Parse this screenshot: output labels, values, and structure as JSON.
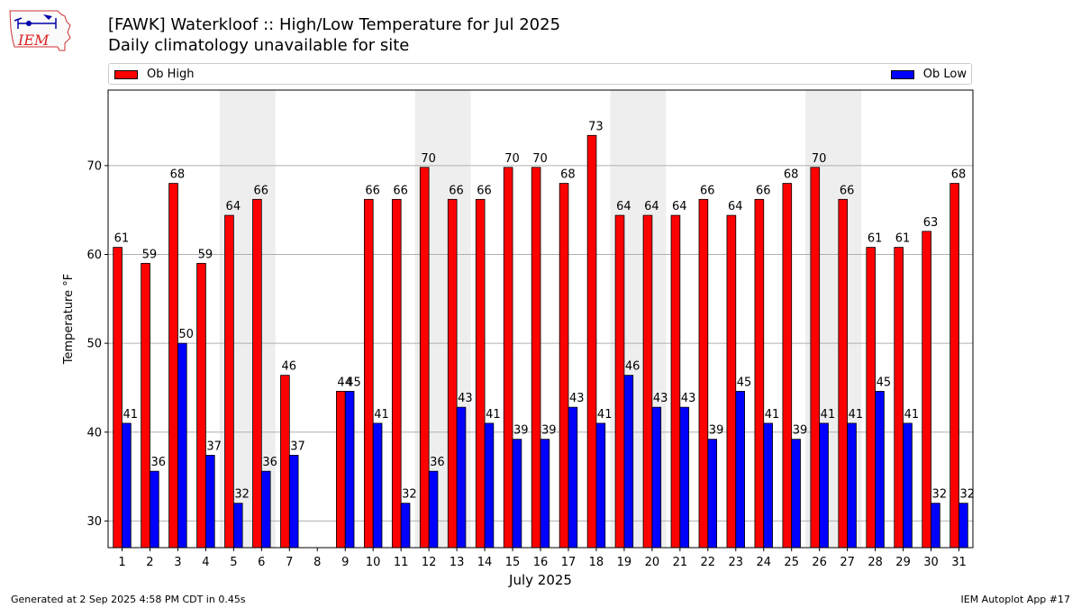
{
  "header": {
    "title": "[FAWK] Waterkloof :: High/Low Temperature for Jul 2025",
    "subtitle": "Daily climatology unavailable for site",
    "logo_text": "IEM"
  },
  "legend": {
    "high_label": "Ob High",
    "low_label": "Ob Low"
  },
  "footer": {
    "generated": "Generated at 2 Sep 2025 4:58 PM CDT in 0.45s",
    "app": "IEM Autoplot App #17"
  },
  "colors": {
    "high": "#ff0000",
    "low": "#0000ff",
    "weekend_shade": "#eeeeee",
    "grid": "#b0b0b0"
  },
  "chart_data": {
    "type": "bar",
    "title": "[FAWK] Waterkloof :: High/Low Temperature for Jul 2025",
    "subtitle": "Daily climatology unavailable for site",
    "xlabel": "July 2025",
    "ylabel": "Temperature °F",
    "categories": [
      "1",
      "2",
      "3",
      "4",
      "5",
      "6",
      "7",
      "8",
      "9",
      "10",
      "11",
      "12",
      "13",
      "14",
      "15",
      "16",
      "17",
      "18",
      "19",
      "20",
      "21",
      "22",
      "23",
      "24",
      "25",
      "26",
      "27",
      "28",
      "29",
      "30",
      "31"
    ],
    "series": [
      {
        "name": "Ob High",
        "color": "#ff0000",
        "values": [
          61,
          59,
          68,
          59,
          64,
          66,
          46,
          null,
          44,
          66,
          66,
          70,
          66,
          66,
          70,
          70,
          68,
          73,
          64,
          64,
          64,
          66,
          64,
          66,
          68,
          70,
          66,
          61,
          61,
          63,
          68
        ],
        "plotted": [
          60.8,
          59.0,
          68.0,
          59.0,
          64.4,
          66.2,
          46.4,
          null,
          44.6,
          66.2,
          66.2,
          69.8,
          66.2,
          66.2,
          69.8,
          69.8,
          68.0,
          73.4,
          64.4,
          64.4,
          64.4,
          66.2,
          64.4,
          66.2,
          68.0,
          69.8,
          66.2,
          60.8,
          60.8,
          62.6,
          68.0
        ]
      },
      {
        "name": "Ob Low",
        "color": "#0000ff",
        "values": [
          41,
          36,
          50,
          37,
          32,
          36,
          37,
          null,
          45,
          41,
          32,
          36,
          43,
          41,
          39,
          39,
          43,
          41,
          46,
          43,
          43,
          39,
          45,
          41,
          39,
          41,
          41,
          45,
          41,
          32,
          32
        ],
        "plotted": [
          41.0,
          35.6,
          50.0,
          37.4,
          32.0,
          35.6,
          37.4,
          null,
          44.6,
          41.0,
          32.0,
          35.6,
          42.8,
          41.0,
          39.2,
          39.2,
          42.8,
          41.0,
          46.4,
          42.8,
          42.8,
          39.2,
          44.6,
          41.0,
          39.2,
          41.0,
          41.0,
          44.6,
          41.0,
          32.0,
          32.0
        ]
      }
    ],
    "shaded_days": [
      [
        5,
        6
      ],
      [
        12,
        13
      ],
      [
        19,
        20
      ],
      [
        26,
        27
      ]
    ],
    "yticks": [
      30,
      40,
      50,
      60,
      70
    ],
    "ylim": [
      27,
      78.5
    ],
    "grid": "y",
    "legend_position": "top"
  }
}
